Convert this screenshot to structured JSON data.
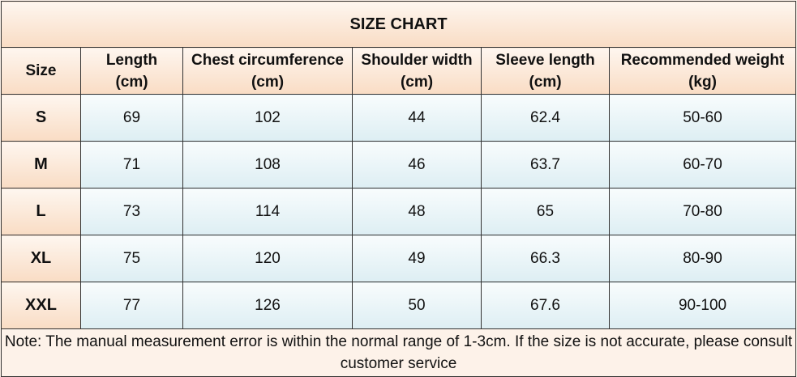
{
  "title": "SIZE CHART",
  "headers": [
    {
      "line1": "Size",
      "line2": ""
    },
    {
      "line1": "Length",
      "line2": "(cm)"
    },
    {
      "line1": "Chest circumference",
      "line2": "(cm)"
    },
    {
      "line1": "Shoulder width",
      "line2": "(cm)"
    },
    {
      "line1": "Sleeve length",
      "line2": "(cm)"
    },
    {
      "line1": "Recommended weight",
      "line2": "(kg)"
    }
  ],
  "rows": [
    {
      "size": "S",
      "length": "69",
      "chest": "102",
      "shoulder": "44",
      "sleeve": "62.4",
      "weight": "50-60"
    },
    {
      "size": "M",
      "length": "71",
      "chest": "108",
      "shoulder": "46",
      "sleeve": "63.7",
      "weight": "60-70"
    },
    {
      "size": "L",
      "length": "73",
      "chest": "114",
      "shoulder": "48",
      "sleeve": "65",
      "weight": "70-80"
    },
    {
      "size": "XL",
      "length": "75",
      "chest": "120",
      "shoulder": "49",
      "sleeve": "66.3",
      "weight": "80-90"
    },
    {
      "size": "XXL",
      "length": "77",
      "chest": "126",
      "shoulder": "50",
      "sleeve": "67.6",
      "weight": "90-100"
    }
  ],
  "note": "Note: The manual measurement error is within the normal range of 1-3cm. If the size is not accurate, please consult customer service",
  "colors": {
    "header_bg_top": "#fef6ef",
    "header_bg_bottom": "#f9dcc4",
    "data_bg_top": "#f8fcfd",
    "data_bg_bottom": "#ddeef3",
    "border": "#333333"
  }
}
